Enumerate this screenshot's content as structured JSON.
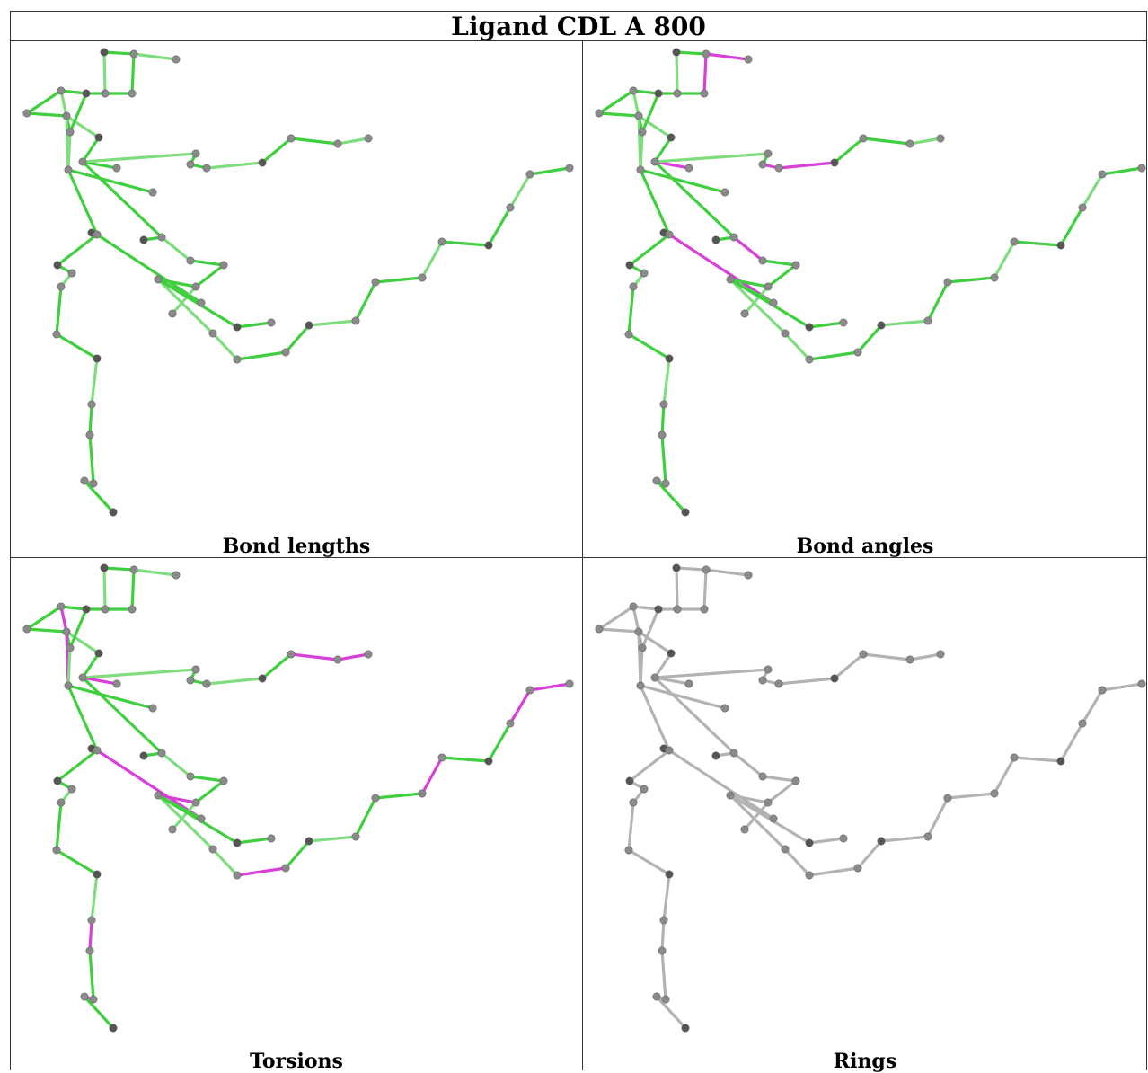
{
  "title": "Ligand CDL A 800",
  "panels": [
    {
      "id": "bond-lengths",
      "caption": "Bond lengths"
    },
    {
      "id": "bond-angles",
      "caption": "Bond angles"
    },
    {
      "id": "torsions",
      "caption": "Torsions"
    },
    {
      "id": "rings",
      "caption": "Rings"
    }
  ],
  "colors": {
    "ok": "#3fcf3f",
    "ok_light": "#7fdc7f",
    "outlier": "#d93fd9",
    "neutral": "#b3b3b3",
    "atom": "#8a8a8a",
    "atom_dark": "#555555"
  }
}
